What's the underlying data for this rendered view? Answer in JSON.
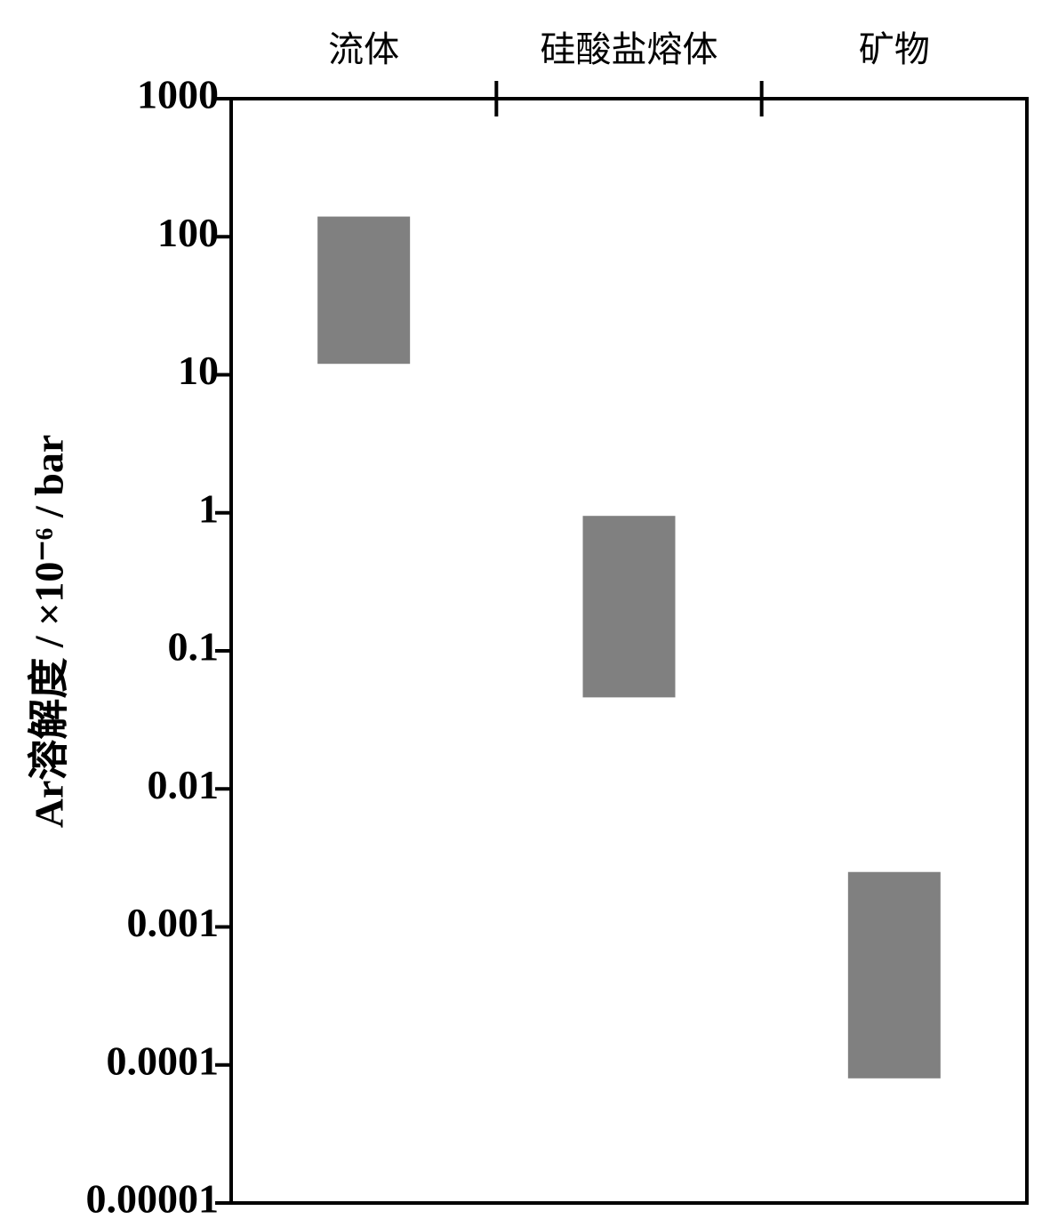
{
  "chart_data": {
    "type": "range-bar",
    "y_label": "Ar溶解度 / ×10⁻⁶ / bar",
    "categories": [
      "流体",
      "硅酸盐熔体",
      "矿物"
    ],
    "low": [
      12,
      0.046,
      8e-05
    ],
    "high": [
      140,
      0.95,
      0.0025
    ],
    "color": "#808080",
    "log_y": true,
    "ylim": [
      1e-05,
      1000
    ],
    "yticks": [
      1e-05,
      0.0001,
      0.001,
      0.01,
      0.1,
      1,
      10,
      100,
      1000
    ],
    "grid": false
  }
}
